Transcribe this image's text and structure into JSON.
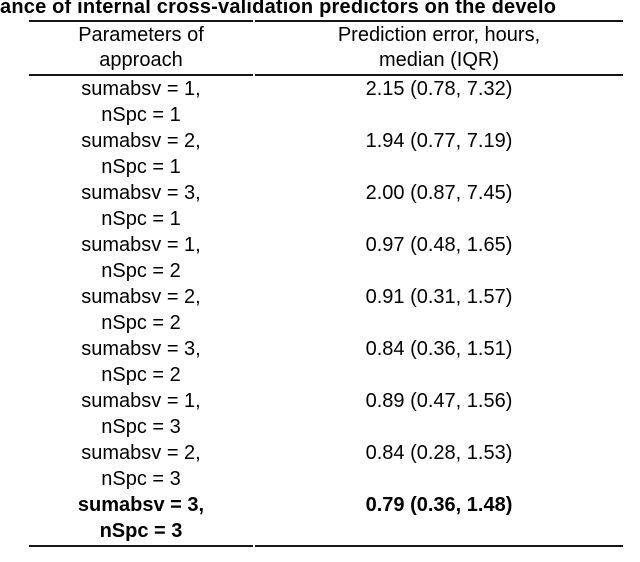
{
  "title": {
    "visible_text": "ance of internal cross-validation predictors on the develo"
  },
  "table": {
    "columns": [
      {
        "header_lines": [
          "Parameters of",
          "approach"
        ]
      },
      {
        "header_lines": [
          "Prediction error, hours,",
          "median (IQR)"
        ]
      }
    ],
    "rows": [
      {
        "params": [
          "sumabsv = 1,",
          "nSpc = 1"
        ],
        "value": "2.15 (0.78, 7.32)",
        "bold": false
      },
      {
        "params": [
          "sumabsv = 2,",
          "nSpc = 1"
        ],
        "value": "1.94 (0.77, 7.19)",
        "bold": false
      },
      {
        "params": [
          "sumabsv = 3,",
          "nSpc = 1"
        ],
        "value": "2.00 (0.87, 7.45)",
        "bold": false
      },
      {
        "params": [
          "sumabsv = 1,",
          "nSpc = 2"
        ],
        "value": "0.97 (0.48, 1.65)",
        "bold": false
      },
      {
        "params": [
          "sumabsv = 2,",
          "nSpc = 2"
        ],
        "value": "0.91 (0.31, 1.57)",
        "bold": false
      },
      {
        "params": [
          "sumabsv = 3,",
          "nSpc = 2"
        ],
        "value": "0.84 (0.36, 1.51)",
        "bold": false
      },
      {
        "params": [
          "sumabsv = 1,",
          "nSpc = 3"
        ],
        "value": "0.89 (0.47, 1.56)",
        "bold": false
      },
      {
        "params": [
          "sumabsv = 2,",
          "nSpc = 3"
        ],
        "value": "0.84 (0.28, 1.53)",
        "bold": false
      },
      {
        "params": [
          "sumabsv = 3,",
          "nSpc = 3"
        ],
        "value": "0.79 (0.36, 1.48)",
        "bold": true
      }
    ]
  },
  "colors": {
    "background": "#ffffff",
    "text": "#000000",
    "rule": "#161616"
  }
}
